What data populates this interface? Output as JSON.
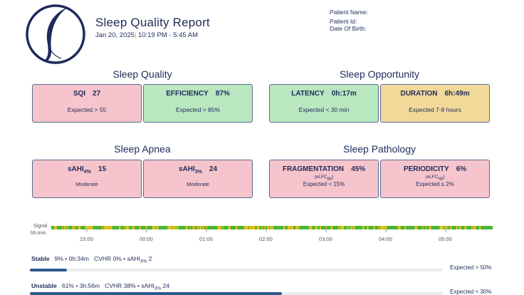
{
  "header": {
    "title": "Sleep Quality Report",
    "date": "Jan 20, 2025",
    "time_range": "10:19 PM - 5:45 AM",
    "patient_name_label": "Patient Name:",
    "patient_id_label": "Patient Id:",
    "dob_label": "Date Of Birth:"
  },
  "sections": {
    "quality": "Sleep Quality",
    "opportunity": "Sleep Opportunity",
    "apnea": "Sleep Apnea",
    "pathology": "Sleep Pathology"
  },
  "cards": {
    "sqi": {
      "label": "SQI",
      "value": "27",
      "expected": "Expected > 55",
      "status": "red"
    },
    "efficiency": {
      "label": "EFFICIENCY",
      "value": "87%",
      "expected": "Expected > 85%",
      "status": "green"
    },
    "latency": {
      "label": "LATENCY",
      "value": "0h:17m",
      "expected": "Expected < 30 min",
      "status": "green"
    },
    "duration": {
      "label": "DURATION",
      "value": "6h:49m",
      "expected": "Expected 7-9 hours",
      "status": "yellow"
    },
    "sahi4": {
      "label_base": "sAHI",
      "label_sub": "4%",
      "value": "15",
      "severity": "Moderate",
      "status": "red"
    },
    "sahi3": {
      "label_base": "sAHI",
      "label_sub": "3%",
      "value": "24",
      "severity": "Moderate",
      "status": "red"
    },
    "fragmentation": {
      "label": "FRAGMENTATION",
      "value": "45%",
      "sub_base": "(eLFC",
      "sub_sub": "BB",
      "sub_end": ")",
      "expected": "Expected < 15%",
      "status": "red"
    },
    "periodicity": {
      "label": "PERIODICITY",
      "value": "6%",
      "sub_base": "(eLFC",
      "sub_sub": "NB",
      "sub_end": ")",
      "expected": "Expected ≤ 2%",
      "status": "red"
    }
  },
  "signal": {
    "signal_label": "Signal",
    "time_label": "hh:mm",
    "ticks": [
      "23:00",
      "00:00",
      "01:00",
      "02:00",
      "03:00",
      "04:00",
      "05:00"
    ]
  },
  "bands": {
    "stable": {
      "label": "Stable",
      "pct": "9%",
      "dur": "0h:34m",
      "cvhr": "CVHR 0%",
      "sahi_base": "sAHI",
      "sahi_sub": "3%",
      "sahi_val": "2",
      "expected": "Expected > 50%",
      "fraction": 0.09
    },
    "unstable": {
      "label": "Unstable",
      "pct": "61%",
      "dur": "3h:56m",
      "cvhr": "CVHR 38%",
      "sahi_base": "sAHI",
      "sahi_sub": "3%",
      "sahi_val": "24",
      "expected": "Expected < 30%",
      "fraction": 0.61
    }
  },
  "colors": {
    "red_card": "#f6c4cc",
    "green_card": "#b8e7c0",
    "yellow_card": "#f2d99a",
    "band_fill": "#2c5a8c",
    "signal_green": "#49b53a",
    "signal_yellow": "#e6c21a"
  }
}
